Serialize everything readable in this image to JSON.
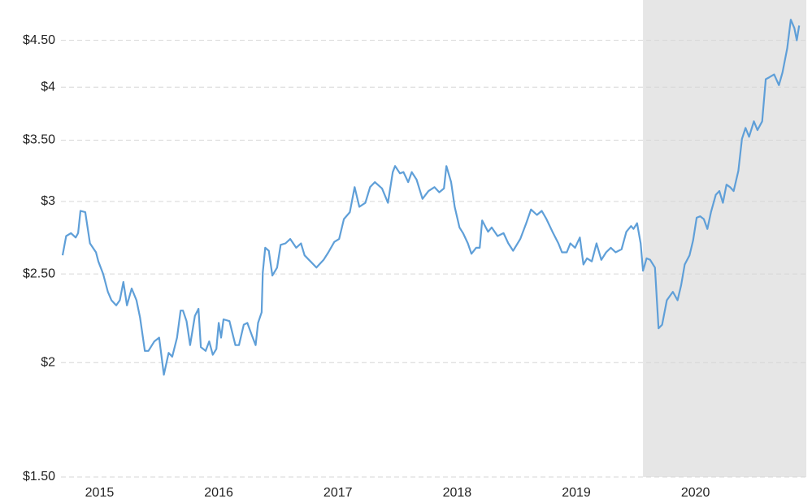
{
  "chart_data": {
    "type": "line",
    "log_scale_y": true,
    "grid": true,
    "shade": {
      "from": 2020.06,
      "to": 2021.43,
      "color": "#e6e6e6"
    },
    "xlim": [
      2015.19,
      2021.43
    ],
    "xticks": [
      {
        "value": 2015.5,
        "label": "2015"
      },
      {
        "value": 2016.5,
        "label": "2016"
      },
      {
        "value": 2017.5,
        "label": "2017"
      },
      {
        "value": 2018.5,
        "label": "2018"
      },
      {
        "value": 2019.5,
        "label": "2019"
      },
      {
        "value": 2020.5,
        "label": "2020"
      }
    ],
    "ylim": [
      1.5,
      4.98
    ],
    "yticks": [
      {
        "value": 1.5,
        "label": "$1.50"
      },
      {
        "value": 2,
        "label": "$2"
      },
      {
        "value": 2.5,
        "label": "$2.50"
      },
      {
        "value": 3,
        "label": "$3"
      },
      {
        "value": 3.5,
        "label": "$3.50"
      },
      {
        "value": 4,
        "label": "$4"
      },
      {
        "value": 4.5,
        "label": "$4.50"
      }
    ],
    "x": [
      2015.19,
      2015.22,
      2015.26,
      2015.3,
      2015.32,
      2015.34,
      2015.38,
      2015.42,
      2015.47,
      2015.49,
      2015.53,
      2015.57,
      2015.6,
      2015.64,
      2015.67,
      2015.7,
      2015.73,
      2015.77,
      2015.81,
      2015.84,
      2015.88,
      2015.91,
      2015.96,
      2016.0,
      2016.04,
      2016.08,
      2016.11,
      2016.15,
      2016.18,
      2016.2,
      2016.23,
      2016.26,
      2016.3,
      2016.33,
      2016.35,
      2016.39,
      2016.42,
      2016.45,
      2016.48,
      2016.5,
      2016.52,
      2016.54,
      2016.59,
      2016.64,
      2016.67,
      2016.71,
      2016.74,
      2016.78,
      2016.81,
      2016.83,
      2016.86,
      2016.87,
      2016.89,
      2016.92,
      2016.95,
      2016.99,
      2017.02,
      2017.06,
      2017.1,
      2017.15,
      2017.19,
      2017.22,
      2017.27,
      2017.32,
      2017.38,
      2017.42,
      2017.47,
      2017.51,
      2017.55,
      2017.6,
      2017.64,
      2017.68,
      2017.73,
      2017.77,
      2017.81,
      2017.87,
      2017.92,
      2017.96,
      2017.98,
      2018.02,
      2018.05,
      2018.09,
      2018.12,
      2018.16,
      2018.21,
      2018.26,
      2018.31,
      2018.35,
      2018.39,
      2018.41,
      2018.45,
      2018.48,
      2018.52,
      2018.55,
      2018.59,
      2018.62,
      2018.66,
      2018.69,
      2018.71,
      2018.76,
      2018.79,
      2018.84,
      2018.89,
      2018.93,
      2018.97,
      2019.03,
      2019.08,
      2019.12,
      2019.17,
      2019.21,
      2019.25,
      2019.3,
      2019.35,
      2019.38,
      2019.42,
      2019.45,
      2019.49,
      2019.53,
      2019.56,
      2019.59,
      2019.63,
      2019.67,
      2019.71,
      2019.75,
      2019.79,
      2019.83,
      2019.88,
      2019.92,
      2019.96,
      2019.98,
      2020.01,
      2020.04,
      2020.06,
      2020.09,
      2020.12,
      2020.16,
      2020.19,
      2020.22,
      2020.26,
      2020.31,
      2020.35,
      2020.38,
      2020.41,
      2020.45,
      2020.48,
      2020.51,
      2020.54,
      2020.57,
      2020.6,
      2020.63,
      2020.67,
      2020.7,
      2020.73,
      2020.76,
      2020.79,
      2020.82,
      2020.86,
      2020.89,
      2020.92,
      2020.95,
      2020.99,
      2021.02,
      2021.06,
      2021.09,
      2021.12,
      2021.16,
      2021.2,
      2021.23,
      2021.27,
      2021.3,
      2021.33,
      2021.35,
      2021.37
    ],
    "series": [
      {
        "color": "#5f9fd8",
        "values": [
          2.62,
          2.75,
          2.77,
          2.74,
          2.77,
          2.93,
          2.92,
          2.7,
          2.64,
          2.58,
          2.5,
          2.39,
          2.34,
          2.31,
          2.34,
          2.45,
          2.31,
          2.41,
          2.34,
          2.24,
          2.06,
          2.06,
          2.11,
          2.13,
          1.94,
          2.05,
          2.03,
          2.13,
          2.28,
          2.28,
          2.22,
          2.09,
          2.25,
          2.29,
          2.08,
          2.06,
          2.11,
          2.04,
          2.07,
          2.21,
          2.13,
          2.23,
          2.22,
          2.09,
          2.09,
          2.2,
          2.21,
          2.14,
          2.09,
          2.21,
          2.27,
          2.51,
          2.67,
          2.65,
          2.49,
          2.54,
          2.69,
          2.7,
          2.73,
          2.67,
          2.7,
          2.62,
          2.58,
          2.54,
          2.59,
          2.64,
          2.71,
          2.73,
          2.87,
          2.92,
          3.11,
          2.96,
          2.99,
          3.11,
          3.15,
          3.1,
          2.99,
          3.23,
          3.28,
          3.22,
          3.23,
          3.15,
          3.23,
          3.17,
          3.02,
          3.08,
          3.11,
          3.07,
          3.1,
          3.28,
          3.15,
          2.96,
          2.81,
          2.77,
          2.7,
          2.63,
          2.67,
          2.67,
          2.86,
          2.78,
          2.81,
          2.75,
          2.77,
          2.7,
          2.65,
          2.73,
          2.84,
          2.94,
          2.9,
          2.93,
          2.87,
          2.78,
          2.7,
          2.64,
          2.64,
          2.7,
          2.67,
          2.74,
          2.56,
          2.6,
          2.58,
          2.7,
          2.59,
          2.64,
          2.67,
          2.64,
          2.66,
          2.78,
          2.82,
          2.8,
          2.84,
          2.7,
          2.52,
          2.6,
          2.59,
          2.54,
          2.18,
          2.2,
          2.34,
          2.39,
          2.34,
          2.43,
          2.56,
          2.62,
          2.72,
          2.88,
          2.89,
          2.87,
          2.8,
          2.92,
          3.05,
          3.08,
          2.99,
          3.13,
          3.11,
          3.08,
          3.24,
          3.51,
          3.61,
          3.53,
          3.67,
          3.59,
          3.67,
          4.08,
          4.1,
          4.13,
          4.02,
          4.15,
          4.41,
          4.74,
          4.64,
          4.5,
          4.67
        ]
      }
    ]
  }
}
